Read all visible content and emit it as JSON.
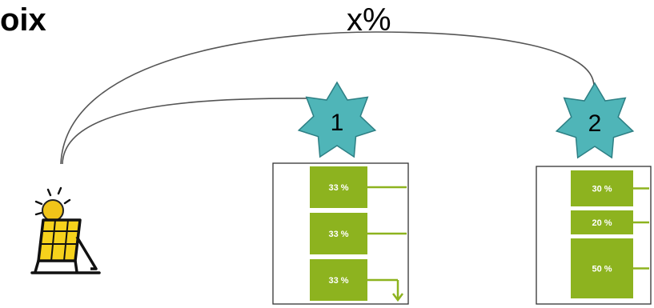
{
  "heading": "oix",
  "arc_label": "x%",
  "colors": {
    "green": "#8db31f",
    "star_fill": "#4fb5b8",
    "star_stroke": "#2d7f84",
    "frame": "#333333",
    "arc": "#555555"
  },
  "icons": {
    "source": "solar-panel-sun-icon"
  },
  "boxes": [
    {
      "number": "1",
      "segments": [
        {
          "label": "33 %",
          "share": 33
        },
        {
          "label": "33 %",
          "share": 33
        },
        {
          "label": "33 %",
          "share": 33
        }
      ]
    },
    {
      "number": "2",
      "segments": [
        {
          "label": "30 %",
          "share": 30
        },
        {
          "label": "20 %",
          "share": 20
        },
        {
          "label": "50 %",
          "share": 50
        }
      ]
    }
  ]
}
